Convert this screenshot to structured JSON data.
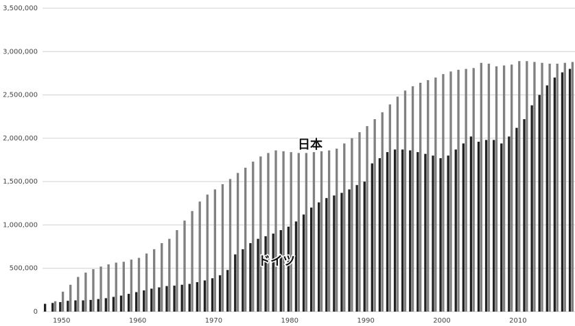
{
  "chart_data": {
    "type": "bar",
    "x": [
      1948,
      1949,
      1950,
      1951,
      1952,
      1953,
      1954,
      1955,
      1956,
      1957,
      1958,
      1959,
      1960,
      1961,
      1962,
      1963,
      1964,
      1965,
      1966,
      1967,
      1968,
      1969,
      1970,
      1971,
      1972,
      1973,
      1974,
      1975,
      1976,
      1977,
      1978,
      1979,
      1980,
      1981,
      1982,
      1983,
      1984,
      1985,
      1986,
      1987,
      1988,
      1989,
      1990,
      1991,
      1992,
      1993,
      1994,
      1995,
      1996,
      1997,
      1998,
      1999,
      2000,
      2001,
      2002,
      2003,
      2004,
      2005,
      2006,
      2007,
      2008,
      2009,
      2010,
      2011,
      2012,
      2013,
      2014,
      2015,
      2016,
      2017
    ],
    "xlim": [
      1947.5,
      2017.5
    ],
    "xticks": [
      1950,
      1960,
      1970,
      1980,
      1990,
      2000,
      2010
    ],
    "ylim": [
      0,
      3500000
    ],
    "yticks": [
      0,
      {
        "value": 500000,
        "label": "500,000"
      },
      {
        "value": 1000000,
        "label": "1,000,000"
      },
      {
        "value": 1500000,
        "label": "1,500,000"
      },
      {
        "value": 2000000,
        "label": "2,000,000"
      },
      {
        "value": 2500000,
        "label": "2,500,000"
      },
      {
        "value": 3000000,
        "label": "3,000,000"
      },
      {
        "value": 3500000,
        "label": "3,500,000"
      }
    ],
    "grid": true,
    "series": [
      {
        "name": "ドイツ",
        "color": "#222222",
        "values": [
          90000,
          100000,
          110000,
          125000,
          130000,
          130000,
          135000,
          145000,
          155000,
          170000,
          185000,
          205000,
          225000,
          245000,
          265000,
          280000,
          295000,
          300000,
          310000,
          320000,
          340000,
          360000,
          385000,
          420000,
          480000,
          660000,
          720000,
          790000,
          840000,
          870000,
          900000,
          940000,
          980000,
          1040000,
          1120000,
          1200000,
          1260000,
          1310000,
          1340000,
          1370000,
          1410000,
          1460000,
          1500000,
          1710000,
          1770000,
          1840000,
          1870000,
          1870000,
          1860000,
          1840000,
          1820000,
          1800000,
          1770000,
          1800000,
          1870000,
          1940000,
          2020000,
          1960000,
          1980000,
          1980000,
          1940000,
          2020000,
          2120000,
          2220000,
          2380000,
          2500000,
          2610000,
          2700000,
          2760000,
          2800000
        ]
      },
      {
        "name": "日本",
        "color": "#808080",
        "values": [
          null,
          120000,
          230000,
          310000,
          400000,
          450000,
          490000,
          520000,
          545000,
          565000,
          575000,
          600000,
          620000,
          670000,
          720000,
          790000,
          840000,
          940000,
          1050000,
          1160000,
          1270000,
          1350000,
          1410000,
          1470000,
          1530000,
          1600000,
          1660000,
          1730000,
          1790000,
          1830000,
          1860000,
          1850000,
          1840000,
          1830000,
          1830000,
          1840000,
          1850000,
          1860000,
          1880000,
          1940000,
          2000000,
          2070000,
          2140000,
          2220000,
          2300000,
          2390000,
          2480000,
          2550000,
          2600000,
          2640000,
          2670000,
          2700000,
          2740000,
          2770000,
          2790000,
          2800000,
          2810000,
          2870000,
          2860000,
          2830000,
          2840000,
          2850000,
          2890000,
          2890000,
          2880000,
          2870000,
          2860000,
          2860000,
          2870000,
          2880000
        ]
      }
    ]
  }
}
